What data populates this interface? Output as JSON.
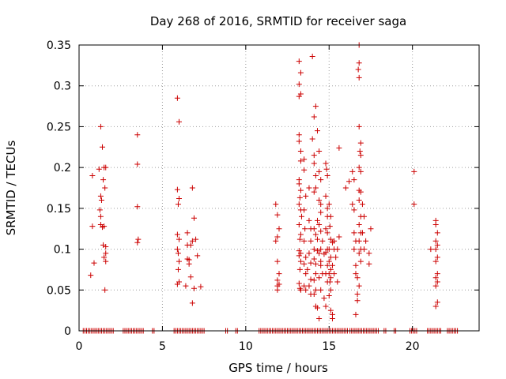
{
  "chart_data": {
    "type": "scatter",
    "title": "Day 268 of 2016, SRMTID for receiver saga",
    "xlabel": "GPS time / hours",
    "ylabel": "SRMTID / TECUs",
    "xlim": [
      0,
      24
    ],
    "ylim": [
      0,
      0.35
    ],
    "xticks": [
      0,
      5,
      10,
      15,
      20
    ],
    "yticks": [
      0,
      0.05,
      0.1,
      0.15,
      0.2,
      0.25,
      0.3,
      0.35
    ],
    "xtick_labels": [
      "0",
      "5",
      "10",
      "15",
      "20"
    ],
    "ytick_labels": [
      "0",
      "0.05",
      "0.1",
      "0.15",
      "0.2",
      "0.25",
      "0.3",
      "0.35"
    ],
    "grid": true,
    "marker": "+",
    "color": "#cc0000",
    "points": [
      [
        0.8,
        0.19
      ],
      [
        0.8,
        0.128
      ],
      [
        0.9,
        0.083
      ],
      [
        0.7,
        0.068
      ],
      [
        1.2,
        0.198
      ],
      [
        1.3,
        0.25
      ],
      [
        1.4,
        0.225
      ],
      [
        1.3,
        0.165
      ],
      [
        1.35,
        0.16
      ],
      [
        1.25,
        0.148
      ],
      [
        1.3,
        0.13
      ],
      [
        1.4,
        0.127
      ],
      [
        1.5,
        0.2
      ],
      [
        1.6,
        0.2
      ],
      [
        1.45,
        0.185
      ],
      [
        1.55,
        0.175
      ],
      [
        1.5,
        0.128
      ],
      [
        1.6,
        0.103
      ],
      [
        1.5,
        0.09
      ],
      [
        1.6,
        0.085
      ],
      [
        1.55,
        0.05
      ],
      [
        1.3,
        0.14
      ],
      [
        1.45,
        0.105
      ],
      [
        1.6,
        0.095
      ],
      [
        3.5,
        0.24
      ],
      [
        3.5,
        0.204
      ],
      [
        3.5,
        0.152
      ],
      [
        3.55,
        0.112
      ],
      [
        3.5,
        0.108
      ],
      [
        5.9,
        0.285
      ],
      [
        6.0,
        0.256
      ],
      [
        5.9,
        0.173
      ],
      [
        6.0,
        0.162
      ],
      [
        5.95,
        0.155
      ],
      [
        5.9,
        0.118
      ],
      [
        6.0,
        0.112
      ],
      [
        5.9,
        0.1
      ],
      [
        5.95,
        0.095
      ],
      [
        6.0,
        0.085
      ],
      [
        5.95,
        0.075
      ],
      [
        6.0,
        0.06
      ],
      [
        5.9,
        0.057
      ],
      [
        6.5,
        0.088
      ],
      [
        6.5,
        0.105
      ],
      [
        6.6,
        0.087
      ],
      [
        6.4,
        0.055
      ],
      [
        6.6,
        0.082
      ],
      [
        6.7,
        0.066
      ],
      [
        6.8,
        0.175
      ],
      [
        6.9,
        0.138
      ],
      [
        6.8,
        0.11
      ],
      [
        6.9,
        0.052
      ],
      [
        6.8,
        0.034
      ],
      [
        7.0,
        0.112
      ],
      [
        7.1,
        0.092
      ],
      [
        7.3,
        0.054
      ],
      [
        6.5,
        0.12
      ],
      [
        6.7,
        0.105
      ],
      [
        11.8,
        0.155
      ],
      [
        11.9,
        0.142
      ],
      [
        12.0,
        0.125
      ],
      [
        11.8,
        0.11
      ],
      [
        11.9,
        0.115
      ],
      [
        11.9,
        0.085
      ],
      [
        12.0,
        0.07
      ],
      [
        11.9,
        0.062
      ],
      [
        11.9,
        0.055
      ],
      [
        12.0,
        0.057
      ],
      [
        11.9,
        0.05
      ],
      [
        13.2,
        0.33
      ],
      [
        13.3,
        0.316
      ],
      [
        13.2,
        0.302
      ],
      [
        13.3,
        0.29
      ],
      [
        13.2,
        0.287
      ],
      [
        13.2,
        0.24
      ],
      [
        13.2,
        0.232
      ],
      [
        13.3,
        0.22
      ],
      [
        13.3,
        0.208
      ],
      [
        13.2,
        0.185
      ],
      [
        13.2,
        0.18
      ],
      [
        13.3,
        0.172
      ],
      [
        13.25,
        0.163
      ],
      [
        13.2,
        0.155
      ],
      [
        13.3,
        0.148
      ],
      [
        13.35,
        0.14
      ],
      [
        13.2,
        0.13
      ],
      [
        13.3,
        0.118
      ],
      [
        13.25,
        0.112
      ],
      [
        13.2,
        0.098
      ],
      [
        13.3,
        0.095
      ],
      [
        13.2,
        0.092
      ],
      [
        13.3,
        0.085
      ],
      [
        13.25,
        0.075
      ],
      [
        13.2,
        0.058
      ],
      [
        13.3,
        0.05
      ],
      [
        13.25,
        0.052
      ],
      [
        13.5,
        0.21
      ],
      [
        13.5,
        0.197
      ],
      [
        13.6,
        0.165
      ],
      [
        13.5,
        0.148
      ],
      [
        13.55,
        0.125
      ],
      [
        13.5,
        0.11
      ],
      [
        13.6,
        0.09
      ],
      [
        13.5,
        0.082
      ],
      [
        13.6,
        0.07
      ],
      [
        13.5,
        0.055
      ],
      [
        13.6,
        0.05
      ],
      [
        13.7,
        0.075
      ],
      [
        13.8,
        0.175
      ],
      [
        13.8,
        0.135
      ],
      [
        13.9,
        0.125
      ],
      [
        13.9,
        0.11
      ],
      [
        13.8,
        0.095
      ],
      [
        13.9,
        0.083
      ],
      [
        13.9,
        0.063
      ],
      [
        13.8,
        0.055
      ],
      [
        13.9,
        0.045
      ],
      [
        14.0,
        0.336
      ],
      [
        14.1,
        0.262
      ],
      [
        14.0,
        0.235
      ],
      [
        14.1,
        0.215
      ],
      [
        14.1,
        0.205
      ],
      [
        14.2,
        0.275
      ],
      [
        14.3,
        0.245
      ],
      [
        14.2,
        0.19
      ],
      [
        14.1,
        0.17
      ],
      [
        14.2,
        0.175
      ],
      [
        14.1,
        0.125
      ],
      [
        14.2,
        0.118
      ],
      [
        14.1,
        0.1
      ],
      [
        14.2,
        0.082
      ],
      [
        14.1,
        0.088
      ],
      [
        14.2,
        0.07
      ],
      [
        14.1,
        0.062
      ],
      [
        14.2,
        0.05
      ],
      [
        14.1,
        0.045
      ],
      [
        14.2,
        0.03
      ],
      [
        14.3,
        0.028
      ],
      [
        14.3,
        0.135
      ],
      [
        14.3,
        0.112
      ],
      [
        14.3,
        0.098
      ],
      [
        14.4,
        0.22
      ],
      [
        14.4,
        0.195
      ],
      [
        14.5,
        0.185
      ],
      [
        14.4,
        0.16
      ],
      [
        14.5,
        0.155
      ],
      [
        14.5,
        0.145
      ],
      [
        14.4,
        0.13
      ],
      [
        14.5,
        0.122
      ],
      [
        14.5,
        0.1
      ],
      [
        14.4,
        0.095
      ],
      [
        14.5,
        0.085
      ],
      [
        14.5,
        0.08
      ],
      [
        14.4,
        0.065
      ],
      [
        14.5,
        0.05
      ],
      [
        14.4,
        0.015
      ],
      [
        14.6,
        0.11
      ],
      [
        14.6,
        0.07
      ],
      [
        14.8,
        0.205
      ],
      [
        14.85,
        0.198
      ],
      [
        14.9,
        0.19
      ],
      [
        14.8,
        0.165
      ],
      [
        14.9,
        0.15
      ],
      [
        14.9,
        0.14
      ],
      [
        14.8,
        0.125
      ],
      [
        14.9,
        0.12
      ],
      [
        14.9,
        0.1
      ],
      [
        14.8,
        0.096
      ],
      [
        14.9,
        0.08
      ],
      [
        14.8,
        0.07
      ],
      [
        14.9,
        0.06
      ],
      [
        14.7,
        0.094
      ],
      [
        14.7,
        0.04
      ],
      [
        14.8,
        0.03
      ],
      [
        15.0,
        0.155
      ],
      [
        15.1,
        0.14
      ],
      [
        15.05,
        0.128
      ],
      [
        15.1,
        0.112
      ],
      [
        15.0,
        0.1
      ],
      [
        15.1,
        0.09
      ],
      [
        15.0,
        0.085
      ],
      [
        15.1,
        0.075
      ],
      [
        15.0,
        0.07
      ],
      [
        15.1,
        0.065
      ],
      [
        15.05,
        0.06
      ],
      [
        15.1,
        0.05
      ],
      [
        15.0,
        0.043
      ],
      [
        15.1,
        0.025
      ],
      [
        15.2,
        0.02
      ],
      [
        15.2,
        0.015
      ],
      [
        15.3,
        0.1
      ],
      [
        15.2,
        0.08
      ],
      [
        15.3,
        0.07
      ],
      [
        15.3,
        0.11
      ],
      [
        15.2,
        0.108
      ],
      [
        15.4,
        0.09
      ],
      [
        15.5,
        0.06
      ],
      [
        15.5,
        0.1
      ],
      [
        15.6,
        0.115
      ],
      [
        15.6,
        0.224
      ],
      [
        16.0,
        0.175
      ],
      [
        16.2,
        0.183
      ],
      [
        16.4,
        0.155
      ],
      [
        16.5,
        0.148
      ],
      [
        16.5,
        0.12
      ],
      [
        16.6,
        0.11
      ],
      [
        16.5,
        0.1
      ],
      [
        16.6,
        0.08
      ],
      [
        16.6,
        0.07
      ],
      [
        16.7,
        0.065
      ],
      [
        16.8,
        0.055
      ],
      [
        16.7,
        0.045
      ],
      [
        16.7,
        0.037
      ],
      [
        16.6,
        0.02
      ],
      [
        16.4,
        0.195
      ],
      [
        16.5,
        0.185
      ],
      [
        16.8,
        0.35
      ],
      [
        16.8,
        0.328
      ],
      [
        16.75,
        0.32
      ],
      [
        16.8,
        0.31
      ],
      [
        16.8,
        0.25
      ],
      [
        16.9,
        0.23
      ],
      [
        16.85,
        0.22
      ],
      [
        16.9,
        0.215
      ],
      [
        16.8,
        0.2
      ],
      [
        16.9,
        0.195
      ],
      [
        16.8,
        0.172
      ],
      [
        16.9,
        0.17
      ],
      [
        16.8,
        0.16
      ],
      [
        16.9,
        0.14
      ],
      [
        16.8,
        0.13
      ],
      [
        16.9,
        0.12
      ],
      [
        16.8,
        0.11
      ],
      [
        16.9,
        0.1
      ],
      [
        16.8,
        0.095
      ],
      [
        16.9,
        0.085
      ],
      [
        17.0,
        0.155
      ],
      [
        17.1,
        0.14
      ],
      [
        17.0,
        0.12
      ],
      [
        17.2,
        0.11
      ],
      [
        17.1,
        0.1
      ],
      [
        17.4,
        0.095
      ],
      [
        17.5,
        0.125
      ],
      [
        17.4,
        0.082
      ],
      [
        20.1,
        0.195
      ],
      [
        20.1,
        0.155
      ],
      [
        21.1,
        0.1
      ],
      [
        21.4,
        0.135
      ],
      [
        21.4,
        0.13
      ],
      [
        21.5,
        0.12
      ],
      [
        21.4,
        0.11
      ],
      [
        21.5,
        0.105
      ],
      [
        21.4,
        0.1
      ],
      [
        21.5,
        0.09
      ],
      [
        21.4,
        0.085
      ],
      [
        21.5,
        0.07
      ],
      [
        21.4,
        0.065
      ],
      [
        21.5,
        0.06
      ],
      [
        21.4,
        0.055
      ],
      [
        21.5,
        0.035
      ],
      [
        21.4,
        0.03
      ]
    ],
    "zero_segments": [
      [
        0.25,
        2.05
      ],
      [
        2.65,
        3.85
      ],
      [
        4.4,
        4.5
      ],
      [
        5.7,
        7.55
      ],
      [
        8.8,
        8.9
      ],
      [
        9.4,
        9.5
      ],
      [
        10.8,
        16.1
      ],
      [
        16.25,
        17.95
      ],
      [
        18.3,
        18.4
      ],
      [
        18.9,
        19.0
      ],
      [
        19.85,
        20.3
      ],
      [
        20.9,
        21.7
      ],
      [
        22.1,
        22.7
      ]
    ]
  }
}
